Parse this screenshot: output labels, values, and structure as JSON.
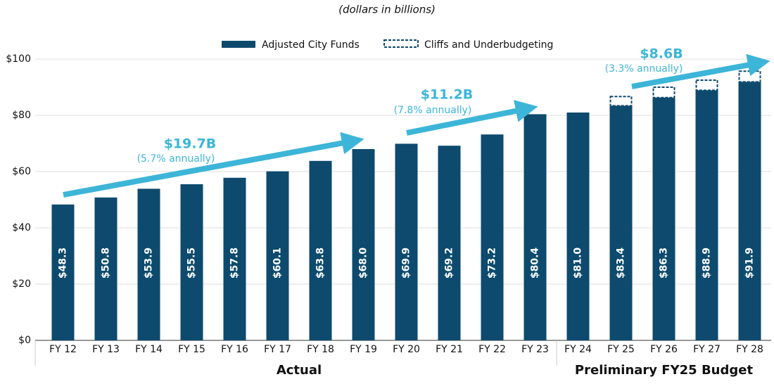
{
  "chart_data": {
    "type": "bar",
    "subtitle": "(dollars in billions)",
    "categories": [
      "FY 12",
      "FY 13",
      "FY 14",
      "FY 15",
      "FY 16",
      "FY 17",
      "FY 18",
      "FY 19",
      "FY 20",
      "FY 21",
      "FY 22",
      "FY 23",
      "FY 24",
      "FY 25",
      "FY 26",
      "FY 27",
      "FY 28"
    ],
    "series": [
      {
        "name": "Adjusted City Funds",
        "color": "#0d4a6e",
        "values": [
          48.3,
          50.8,
          53.9,
          55.5,
          57.8,
          60.1,
          63.8,
          68.0,
          69.9,
          69.2,
          73.2,
          80.4,
          81.0,
          83.4,
          86.3,
          88.9,
          91.9
        ],
        "value_labels": [
          "$48.3",
          "$50.8",
          "$53.9",
          "$55.5",
          "$57.8",
          "$60.1",
          "$63.8",
          "$68.0",
          "$69.9",
          "$69.2",
          "$73.2",
          "$80.4",
          "$81.0",
          "$83.4",
          "$86.3",
          "$88.9",
          "$91.9"
        ]
      },
      {
        "name": "Cliffs and Underbudgeting",
        "color": "#0d4a6e",
        "values": [
          null,
          null,
          null,
          null,
          null,
          null,
          null,
          null,
          null,
          null,
          null,
          null,
          null,
          3.3,
          3.7,
          3.6,
          3.8
        ]
      }
    ],
    "ylim": [
      0,
      100
    ],
    "yticks": [
      {
        "value": 0,
        "label": "$0"
      },
      {
        "value": 20,
        "label": "$20"
      },
      {
        "value": 40,
        "label": "$40"
      },
      {
        "value": 60,
        "label": "$60"
      },
      {
        "value": 80,
        "label": "$80"
      },
      {
        "value": 100,
        "label": "$100"
      }
    ],
    "groups": [
      "Actual",
      "Preliminary FY25 Budget"
    ],
    "annotations": [
      {
        "text": "$19.7B",
        "subtext": "(5.7% annually)"
      },
      {
        "text": "$11.2B",
        "subtext": "(7.8% annually)"
      },
      {
        "text": "$8.6B",
        "subtext": "(3.3% annually)"
      }
    ]
  }
}
